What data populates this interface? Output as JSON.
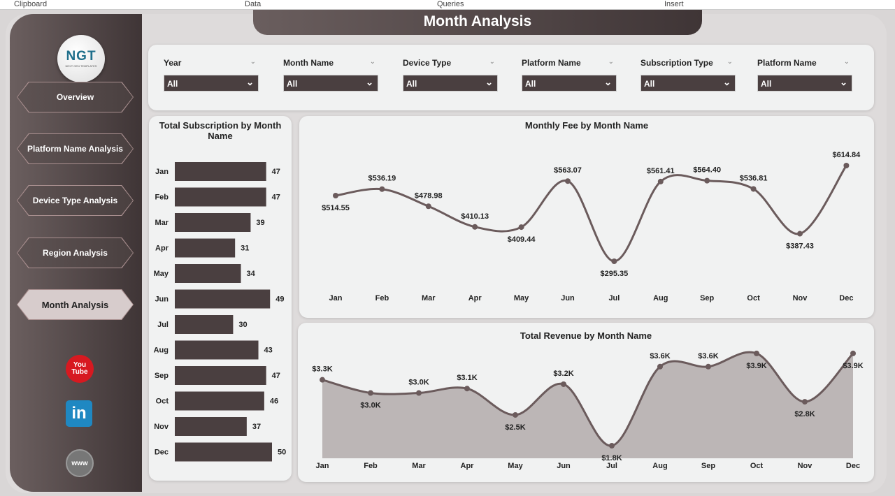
{
  "ribbon": [
    "Clipboard",
    "Data",
    "Queries",
    "Insert"
  ],
  "header": {
    "title": "Month Analysis"
  },
  "logo": {
    "text": "NGT",
    "sub": "NEXT GEN TEMPLATES"
  },
  "sidebar": {
    "items": [
      {
        "label": "Overview"
      },
      {
        "label": "Platform Name Analysis"
      },
      {
        "label": "Device Type Analysis"
      },
      {
        "label": "Region Analysis"
      },
      {
        "label": "Month Analysis",
        "active": true
      }
    ],
    "social": [
      {
        "icon": "youtube-icon",
        "text": "You Tube",
        "color": "#d71920"
      },
      {
        "icon": "linkedin-icon",
        "text": "in",
        "color": "#1f88c2"
      },
      {
        "icon": "globe-icon",
        "text": "www",
        "color": "#777777"
      }
    ]
  },
  "filters": [
    {
      "label": "Year",
      "value": "All"
    },
    {
      "label": "Month Name",
      "value": "All"
    },
    {
      "label": "Device Type",
      "value": "All"
    },
    {
      "label": "Platform Name",
      "value": "All"
    },
    {
      "label": "Subscription Type",
      "value": "All"
    },
    {
      "label": "Platform Name",
      "value": "All"
    }
  ],
  "colors": {
    "dark": "#4a3f40",
    "line": "#6b5b5c",
    "area": "#bcb6b6"
  },
  "chart_data": [
    {
      "type": "bar",
      "orientation": "horizontal",
      "title": "Total Subscription by Month Name",
      "categories": [
        "Jan",
        "Feb",
        "Mar",
        "Apr",
        "May",
        "Jun",
        "Jul",
        "Aug",
        "Sep",
        "Oct",
        "Nov",
        "Dec"
      ],
      "values": [
        47,
        47,
        39,
        31,
        34,
        49,
        30,
        43,
        47,
        46,
        37,
        50
      ],
      "labels": [
        "47",
        "47",
        "39",
        "31",
        "34",
        "49",
        "30",
        "43",
        "47",
        "46",
        "37",
        "50"
      ]
    },
    {
      "type": "line",
      "title": "Monthly Fee by Month Name",
      "categories": [
        "Jan",
        "Feb",
        "Mar",
        "Apr",
        "May",
        "Jun",
        "Jul",
        "Aug",
        "Sep",
        "Oct",
        "Nov",
        "Dec"
      ],
      "values": [
        514.55,
        536.19,
        478.98,
        410.13,
        409.44,
        563.07,
        295.35,
        561.41,
        564.4,
        536.81,
        387.43,
        614.84
      ],
      "labels": [
        "$514.55",
        "$536.19",
        "$478.98",
        "$410.13",
        "$409.44",
        "$563.07",
        "$295.35",
        "$561.41",
        "$564.40",
        "$536.81",
        "$387.43",
        "$614.84"
      ]
    },
    {
      "type": "area",
      "title": "Total Revenue by Month Name",
      "categories": [
        "Jan",
        "Feb",
        "Mar",
        "Apr",
        "May",
        "Jun",
        "Jul",
        "Aug",
        "Sep",
        "Oct",
        "Nov",
        "Dec"
      ],
      "values": [
        3300,
        3000,
        3000,
        3100,
        2500,
        3200,
        1800,
        3600,
        3600,
        3900,
        2800,
        3900
      ],
      "labels": [
        "$3.3K",
        "$3.0K",
        "$3.0K",
        "$3.1K",
        "$2.5K",
        "$3.2K",
        "$1.8K",
        "$3.6K",
        "$3.6K",
        "$3.9K",
        "$2.8K",
        "$3.9K"
      ]
    }
  ]
}
